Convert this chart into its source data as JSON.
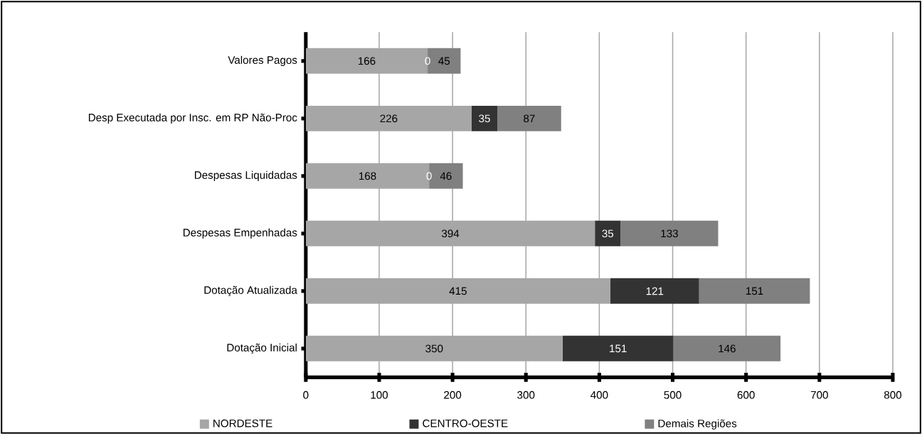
{
  "chart_data": {
    "type": "bar",
    "orientation": "horizontal",
    "stacked": true,
    "categories": [
      "Valores Pagos",
      "Desp Executada por Insc. em RP Não-Proc",
      "Despesas Liquidadas",
      "Despesas Empenhadas",
      "Dotação Atualizada",
      "Dotação Inicial"
    ],
    "series": [
      {
        "name": "NORDESTE",
        "color": "#a6a6a6",
        "values": [
          166,
          226,
          168,
          394,
          415,
          350
        ]
      },
      {
        "name": "CENTRO-OESTE",
        "color": "#333333",
        "values": [
          0,
          35,
          0,
          35,
          121,
          151
        ]
      },
      {
        "name": "Demais Regiões",
        "color": "#808080",
        "values": [
          45,
          87,
          46,
          133,
          151,
          146
        ]
      }
    ],
    "xlim": [
      0,
      800
    ],
    "xticks": [
      0,
      100,
      200,
      300,
      400,
      500,
      600,
      700,
      800
    ],
    "grid": "x",
    "legend": "bottom",
    "data_labels": true
  }
}
